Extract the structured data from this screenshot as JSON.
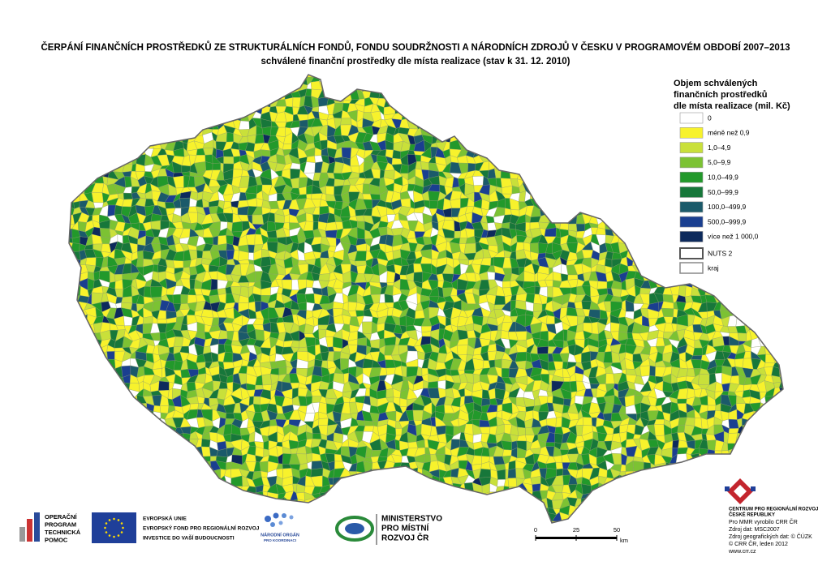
{
  "header": {
    "title": "ČERPÁNÍ FINANČNÍCH PROSTŘEDKŮ ZE STRUKTURÁLNÍCH FONDŮ, FONDU SOUDRŽNOSTI A NÁRODNÍCH ZDROJŮ V ČESKU V PROGRAMOVÉM OBDOBÍ 2007–2013",
    "subtitle": "schválené finanční prostředky dle místa realizace (stav k 31. 12. 2010)"
  },
  "legend": {
    "title": [
      "Objem schválených",
      "finančních prostředků",
      "dle místa realizace (mil. Kč)"
    ],
    "items": [
      {
        "label": "0",
        "color": "#ffffff"
      },
      {
        "label": "méně než 0,9",
        "color": "#f7f22c"
      },
      {
        "label": "1,0–4,9",
        "color": "#c9e03a"
      },
      {
        "label": "5,0–9,9",
        "color": "#7cc233"
      },
      {
        "label": "10,0–49,9",
        "color": "#22992b"
      },
      {
        "label": "50,0–99,9",
        "color": "#17773a"
      },
      {
        "label": "100,0–499,9",
        "color": "#1b5a6a"
      },
      {
        "label": "500,0–999,9",
        "color": "#1a3f90"
      },
      {
        "label": "více než 1 000,0",
        "color": "#0d2a5c"
      }
    ],
    "boundaries": [
      {
        "label": "NUTS 2"
      },
      {
        "label": "kraj"
      }
    ]
  },
  "scale": {
    "ticks": [
      0,
      25,
      50
    ],
    "unit": "km"
  },
  "logos": {
    "optp": [
      "OPERAČNÍ",
      "PROGRAM",
      "TECHNICKÁ",
      "POMOC"
    ],
    "eu": [
      "EVROPSKÁ UNIE",
      "EVROPSKÝ FOND PRO REGIONÁLNÍ ROZVOJ",
      "INVESTICE DO VAŠÍ BUDOUCNOSTI"
    ],
    "nok": [
      "NÁRODNÍ ORGÁN",
      "PRO KOORDINACI"
    ],
    "mmr": [
      "MINISTERSTVO",
      "PRO MÍSTNÍ",
      "ROZVOJ ČR"
    ]
  },
  "credits": {
    "org": [
      "CENTRUM PRO REGIONÁLNÍ ROZVOJ",
      "ČESKÉ REPUBLIKY"
    ],
    "lines": [
      "Pro MMR vyrobilo CRR ČR",
      "Zdroj dat: MSC2007",
      "Zdroj geografických dat: © ČÚZK",
      "© CRR ČR, leden 2012",
      "www.crr.cz"
    ]
  }
}
